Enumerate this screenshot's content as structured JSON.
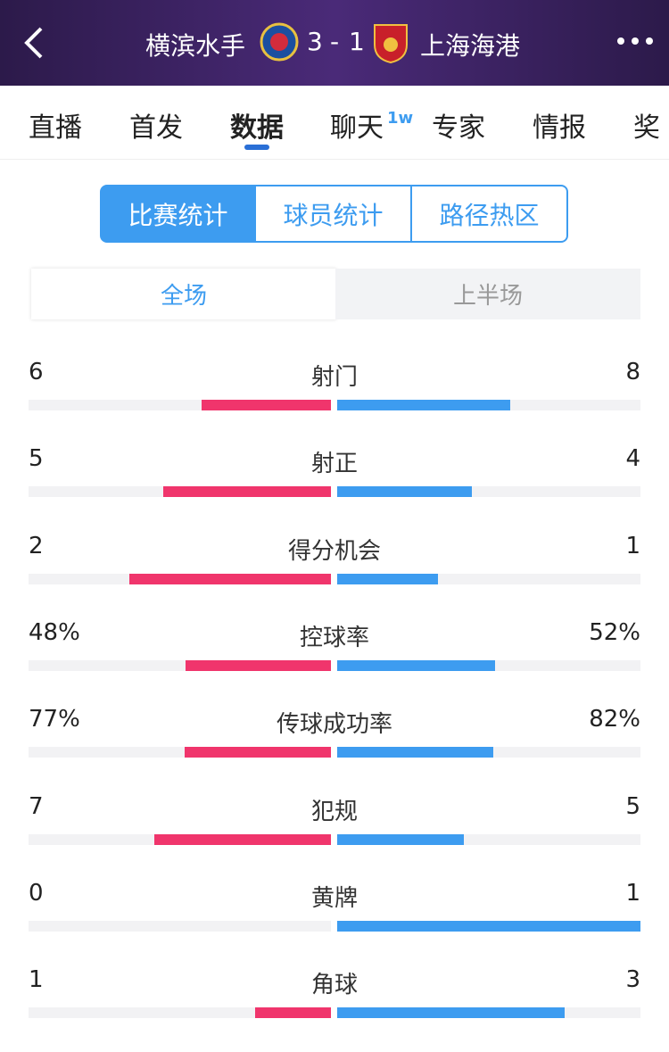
{
  "header": {
    "home_team": "横滨水手",
    "home_score": 3,
    "away_score": 1,
    "away_team": "上海海港"
  },
  "tabs": [
    "直播",
    "首发",
    "数据",
    "聊天",
    "专家",
    "情报",
    "奖"
  ],
  "active_tab": 2,
  "chat_badge": "1w",
  "segments": [
    "比赛统计",
    "球员统计",
    "路径热区"
  ],
  "periods": [
    "全场",
    "上半场"
  ],
  "stats": [
    {
      "name": "射门",
      "home": 6,
      "away": 8
    },
    {
      "name": "射正",
      "home": 5,
      "away": 4
    },
    {
      "name": "得分机会",
      "home": 2,
      "away": 1
    },
    {
      "name": "控球率",
      "home": 48,
      "away": 52,
      "home_label": "48%",
      "away_label": "52%"
    },
    {
      "name": "传球成功率",
      "home": 77,
      "away": 82,
      "home_label": "77%",
      "away_label": "82%"
    },
    {
      "name": "犯规",
      "home": 7,
      "away": 5
    },
    {
      "name": "黄牌",
      "home": 0,
      "away": 1
    },
    {
      "name": "角球",
      "home": 1,
      "away": 3
    }
  ]
}
